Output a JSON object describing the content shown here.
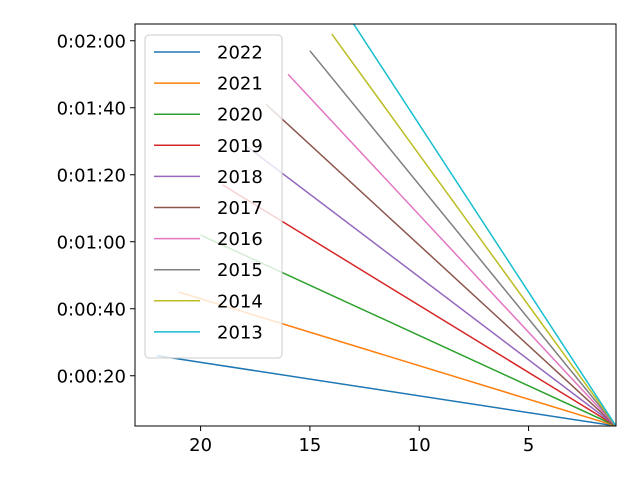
{
  "chart_data": {
    "type": "line",
    "title": "",
    "xlabel": "",
    "ylabel": "",
    "x_inverted": true,
    "xlim": [
      23,
      1
    ],
    "ylim": [
      5,
      125
    ],
    "y_unit": "seconds",
    "x_ticks": [
      {
        "value": 20,
        "label": "20"
      },
      {
        "value": 15,
        "label": "15"
      },
      {
        "value": 10,
        "label": "10"
      },
      {
        "value": 5,
        "label": "5"
      }
    ],
    "y_ticks": [
      {
        "value": 20,
        "label": "0:00:20"
      },
      {
        "value": 40,
        "label": "0:00:40"
      },
      {
        "value": 60,
        "label": "0:01:00"
      },
      {
        "value": 80,
        "label": "0:01:20"
      },
      {
        "value": 100,
        "label": "0:01:40"
      },
      {
        "value": 120,
        "label": "0:02:00"
      }
    ],
    "grid": false,
    "legend_position": "top-left",
    "series": [
      {
        "name": "2022",
        "color": "#1f77b4",
        "x": [
          22,
          1
        ],
        "y": [
          26,
          5
        ]
      },
      {
        "name": "2021",
        "color": "#ff7f0e",
        "x": [
          21,
          1
        ],
        "y": [
          45,
          5
        ]
      },
      {
        "name": "2020",
        "color": "#2ca02c",
        "x": [
          20,
          1
        ],
        "y": [
          62,
          5
        ]
      },
      {
        "name": "2019",
        "color": "#d62728",
        "x": [
          19,
          1
        ],
        "y": [
          77,
          5
        ]
      },
      {
        "name": "2018",
        "color": "#9467bd",
        "x": [
          18,
          1
        ],
        "y": [
          89,
          5
        ]
      },
      {
        "name": "2017",
        "color": "#8c564b",
        "x": [
          17,
          1
        ],
        "y": [
          101,
          5
        ]
      },
      {
        "name": "2016",
        "color": "#e377c2",
        "x": [
          16,
          1
        ],
        "y": [
          110,
          5
        ]
      },
      {
        "name": "2015",
        "color": "#7f7f7f",
        "x": [
          15,
          1
        ],
        "y": [
          117,
          5
        ]
      },
      {
        "name": "2014",
        "color": "#bcbd22",
        "x": [
          14,
          1
        ],
        "y": [
          122,
          5
        ]
      },
      {
        "name": "2013",
        "color": "#17becf",
        "x": [
          13,
          1
        ],
        "y": [
          125,
          5
        ]
      }
    ]
  }
}
